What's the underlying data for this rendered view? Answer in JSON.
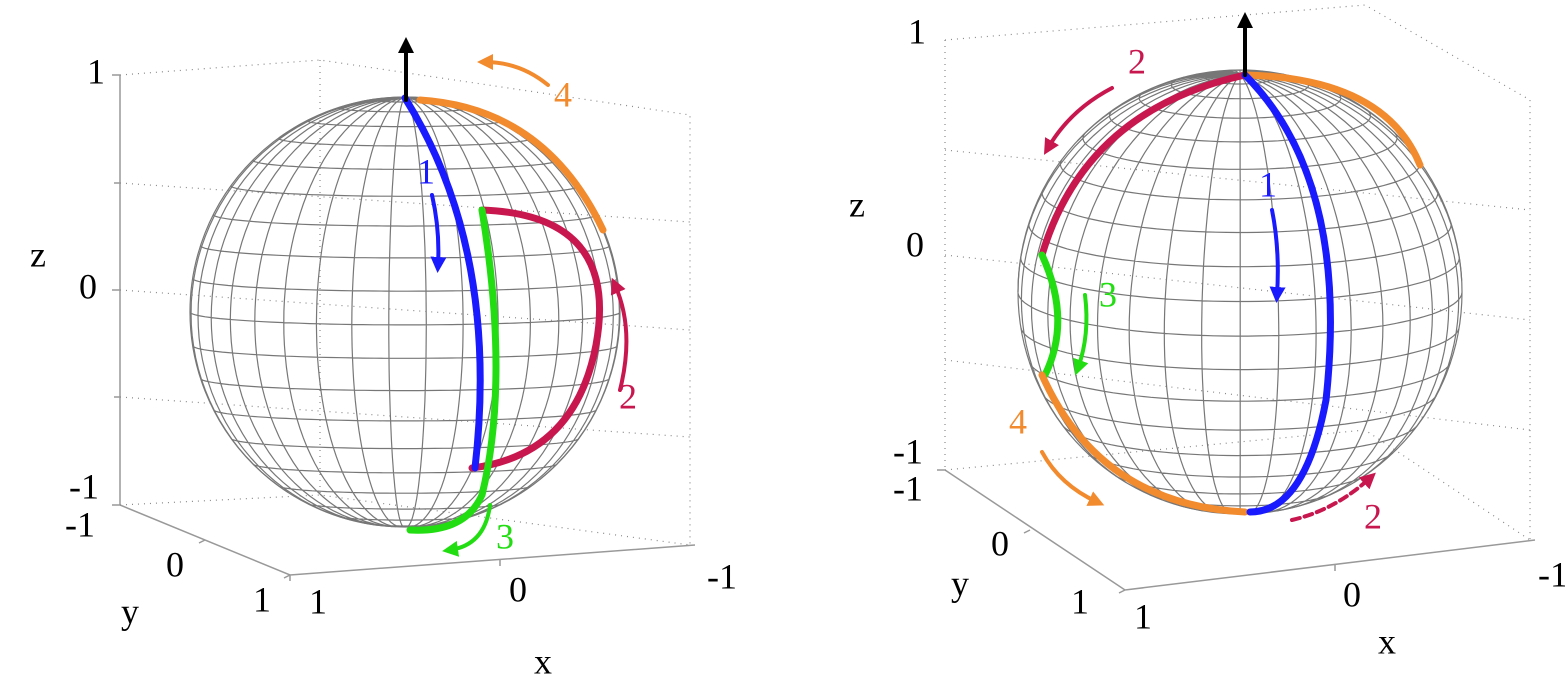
{
  "panels": [
    {
      "z_label": "z",
      "y_label": "y",
      "x_label": "x",
      "z_ticks": [
        1,
        0,
        -1
      ],
      "y_ticks": [
        -1,
        0,
        1
      ],
      "x_ticks": [
        1,
        0,
        -1
      ],
      "path_labels": [
        {
          "text": 1,
          "color": "#1a1aff"
        },
        {
          "text": 2,
          "color": "#c8174f"
        },
        {
          "text": 3,
          "color": "#22dd11"
        },
        {
          "text": 4,
          "color": "#f28a2e"
        }
      ]
    },
    {
      "z_label": "z",
      "y_label": "y",
      "x_label": "x",
      "z_ticks": [
        1,
        0,
        -1
      ],
      "y_ticks": [
        -1,
        0,
        1
      ],
      "x_ticks": [
        1,
        0,
        -1
      ],
      "path_labels": [
        {
          "text": 1,
          "color": "#1a1aff"
        },
        {
          "text": 2,
          "color": "#c8174f"
        },
        {
          "text": 3,
          "color": "#22dd11"
        },
        {
          "text": 4,
          "color": "#f28a2e"
        },
        {
          "text": 2,
          "color": "#c8174f"
        }
      ]
    }
  ]
}
